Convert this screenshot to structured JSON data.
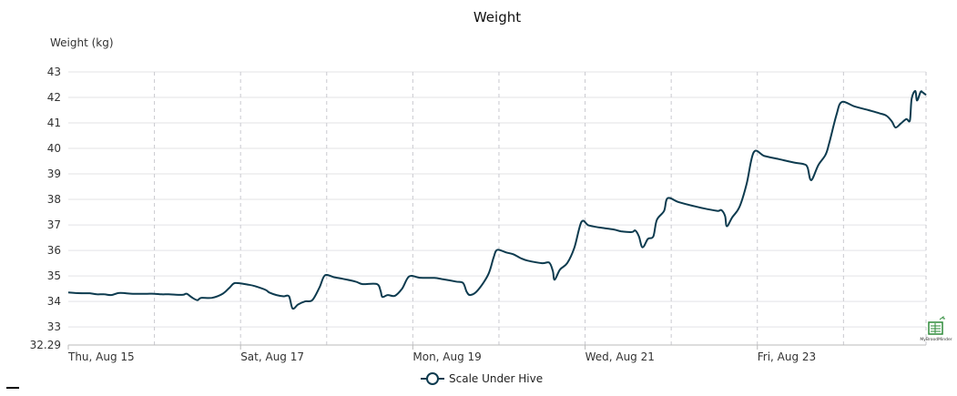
{
  "chart_data": {
    "type": "line",
    "title": "Weight",
    "ylabel": "Weight (kg)",
    "xlabel": "",
    "ylim": [
      32.29,
      43
    ],
    "y_ticks": [
      "32.29",
      "33",
      "34",
      "35",
      "36",
      "37",
      "38",
      "39",
      "40",
      "41",
      "42",
      "43"
    ],
    "x_range": [
      "2024-08-15T00:00",
      "2024-08-24T23:00"
    ],
    "x_ticks": [
      "Thu, Aug 15",
      "Sat, Aug 17",
      "Mon, Aug 19",
      "Wed, Aug 21",
      "Fri, Aug 23"
    ],
    "grid": true,
    "legend_position": "bottom-center",
    "series": [
      {
        "name": "Scale Under Hive",
        "color": "#0d3b4f",
        "points": [
          [
            "2024-08-15T00:00",
            34.35
          ],
          [
            "2024-08-15T02:00",
            34.33
          ],
          [
            "2024-08-15T04:00",
            34.32
          ],
          [
            "2024-08-15T06:00",
            34.32
          ],
          [
            "2024-08-15T08:00",
            34.28
          ],
          [
            "2024-08-15T10:00",
            34.28
          ],
          [
            "2024-08-15T12:00",
            34.25
          ],
          [
            "2024-08-15T14:00",
            34.33
          ],
          [
            "2024-08-15T16:00",
            34.32
          ],
          [
            "2024-08-15T18:00",
            34.3
          ],
          [
            "2024-08-15T20:00",
            34.3
          ],
          [
            "2024-08-15T22:00",
            34.3
          ],
          [
            "2024-08-16T00:00",
            34.3
          ],
          [
            "2024-08-16T02:00",
            34.28
          ],
          [
            "2024-08-16T04:00",
            34.28
          ],
          [
            "2024-08-16T06:00",
            34.26
          ],
          [
            "2024-08-16T08:00",
            34.26
          ],
          [
            "2024-08-16T09:00",
            34.3
          ],
          [
            "2024-08-16T10:30",
            34.15
          ],
          [
            "2024-08-16T12:00",
            34.05
          ],
          [
            "2024-08-16T13:00",
            34.14
          ],
          [
            "2024-08-16T16:00",
            34.14
          ],
          [
            "2024-08-16T19:00",
            34.3
          ],
          [
            "2024-08-16T21:00",
            34.55
          ],
          [
            "2024-08-16T22:30",
            34.72
          ],
          [
            "2024-08-17T02:00",
            34.66
          ],
          [
            "2024-08-17T04:00",
            34.6
          ],
          [
            "2024-08-17T07:00",
            34.45
          ],
          [
            "2024-08-17T08:00",
            34.35
          ],
          [
            "2024-08-17T10:00",
            34.25
          ],
          [
            "2024-08-17T12:00",
            34.2
          ],
          [
            "2024-08-17T13:30",
            34.2
          ],
          [
            "2024-08-17T14:30",
            33.72
          ],
          [
            "2024-08-17T16:00",
            33.88
          ],
          [
            "2024-08-17T18:00",
            34.0
          ],
          [
            "2024-08-17T20:00",
            34.05
          ],
          [
            "2024-08-17T22:00",
            34.55
          ],
          [
            "2024-08-17T23:30",
            35.02
          ],
          [
            "2024-08-18T02:00",
            34.95
          ],
          [
            "2024-08-18T04:00",
            34.9
          ],
          [
            "2024-08-18T08:00",
            34.78
          ],
          [
            "2024-08-18T10:00",
            34.68
          ],
          [
            "2024-08-18T14:00",
            34.68
          ],
          [
            "2024-08-18T15:00",
            34.42
          ],
          [
            "2024-08-18T15:30",
            34.18
          ],
          [
            "2024-08-18T17:00",
            34.25
          ],
          [
            "2024-08-18T19:00",
            34.22
          ],
          [
            "2024-08-18T21:00",
            34.5
          ],
          [
            "2024-08-18T23:00",
            34.98
          ],
          [
            "2024-08-19T02:00",
            34.93
          ],
          [
            "2024-08-19T06:00",
            34.92
          ],
          [
            "2024-08-19T08:00",
            34.88
          ],
          [
            "2024-08-19T12:00",
            34.78
          ],
          [
            "2024-08-19T14:00",
            34.72
          ],
          [
            "2024-08-19T15:00",
            34.38
          ],
          [
            "2024-08-19T16:00",
            34.25
          ],
          [
            "2024-08-19T18:00",
            34.42
          ],
          [
            "2024-08-19T21:00",
            35.05
          ],
          [
            "2024-08-19T22:30",
            35.72
          ],
          [
            "2024-08-19T23:30",
            36.02
          ],
          [
            "2024-08-20T02:00",
            35.92
          ],
          [
            "2024-08-20T04:00",
            35.85
          ],
          [
            "2024-08-20T06:00",
            35.7
          ],
          [
            "2024-08-20T08:00",
            35.6
          ],
          [
            "2024-08-20T12:00",
            35.5
          ],
          [
            "2024-08-20T14:00",
            35.52
          ],
          [
            "2024-08-20T15:00",
            35.2
          ],
          [
            "2024-08-20T15:30",
            34.85
          ],
          [
            "2024-08-20T17:00",
            35.25
          ],
          [
            "2024-08-20T19:00",
            35.5
          ],
          [
            "2024-08-20T21:00",
            36.1
          ],
          [
            "2024-08-20T23:00",
            37.12
          ],
          [
            "2024-08-21T01:00",
            36.98
          ],
          [
            "2024-08-21T04:00",
            36.9
          ],
          [
            "2024-08-21T08:00",
            36.82
          ],
          [
            "2024-08-21T10:00",
            36.75
          ],
          [
            "2024-08-21T13:00",
            36.72
          ],
          [
            "2024-08-21T14:00",
            36.78
          ],
          [
            "2024-08-21T15:00",
            36.55
          ],
          [
            "2024-08-21T16:00",
            36.12
          ],
          [
            "2024-08-21T17:30",
            36.45
          ],
          [
            "2024-08-21T19:00",
            36.55
          ],
          [
            "2024-08-21T20:00",
            37.2
          ],
          [
            "2024-08-21T22:00",
            37.55
          ],
          [
            "2024-08-21T23:00",
            38.05
          ],
          [
            "2024-08-22T02:00",
            37.9
          ],
          [
            "2024-08-22T06:00",
            37.75
          ],
          [
            "2024-08-22T10:00",
            37.62
          ],
          [
            "2024-08-22T13:00",
            37.55
          ],
          [
            "2024-08-22T14:00",
            37.58
          ],
          [
            "2024-08-22T15:00",
            37.35
          ],
          [
            "2024-08-22T15:30",
            36.95
          ],
          [
            "2024-08-22T17:00",
            37.3
          ],
          [
            "2024-08-22T19:00",
            37.7
          ],
          [
            "2024-08-22T21:00",
            38.6
          ],
          [
            "2024-08-22T23:00",
            39.85
          ],
          [
            "2024-08-23T02:00",
            39.7
          ],
          [
            "2024-08-23T06:00",
            39.58
          ],
          [
            "2024-08-23T10:00",
            39.45
          ],
          [
            "2024-08-23T13:00",
            39.38
          ],
          [
            "2024-08-23T14:00",
            39.25
          ],
          [
            "2024-08-23T15:00",
            38.75
          ],
          [
            "2024-08-23T17:00",
            39.35
          ],
          [
            "2024-08-23T19:00",
            39.75
          ],
          [
            "2024-08-23T20:00",
            40.2
          ],
          [
            "2024-08-23T22:00",
            41.3
          ],
          [
            "2024-08-23T23:30",
            41.82
          ],
          [
            "2024-08-24T03:00",
            41.65
          ],
          [
            "2024-08-24T07:00",
            41.5
          ],
          [
            "2024-08-24T10:00",
            41.38
          ],
          [
            "2024-08-24T12:00",
            41.28
          ],
          [
            "2024-08-24T13:30",
            41.05
          ],
          [
            "2024-08-24T14:30",
            40.82
          ],
          [
            "2024-08-24T16:00",
            40.98
          ],
          [
            "2024-08-24T17:30",
            41.15
          ],
          [
            "2024-08-24T18:30",
            41.1
          ],
          [
            "2024-08-24T19:00",
            41.95
          ],
          [
            "2024-08-24T20:00",
            42.25
          ],
          [
            "2024-08-24T20:30",
            41.88
          ],
          [
            "2024-08-24T21:30",
            42.22
          ],
          [
            "2024-08-24T22:00",
            42.2
          ],
          [
            "2024-08-24T22:30",
            42.15
          ],
          [
            "2024-08-24T23:00",
            42.1
          ]
        ]
      }
    ]
  },
  "watermark": {
    "icon": "mybroodminder-logo-icon",
    "text": "MyBroodMinder"
  }
}
